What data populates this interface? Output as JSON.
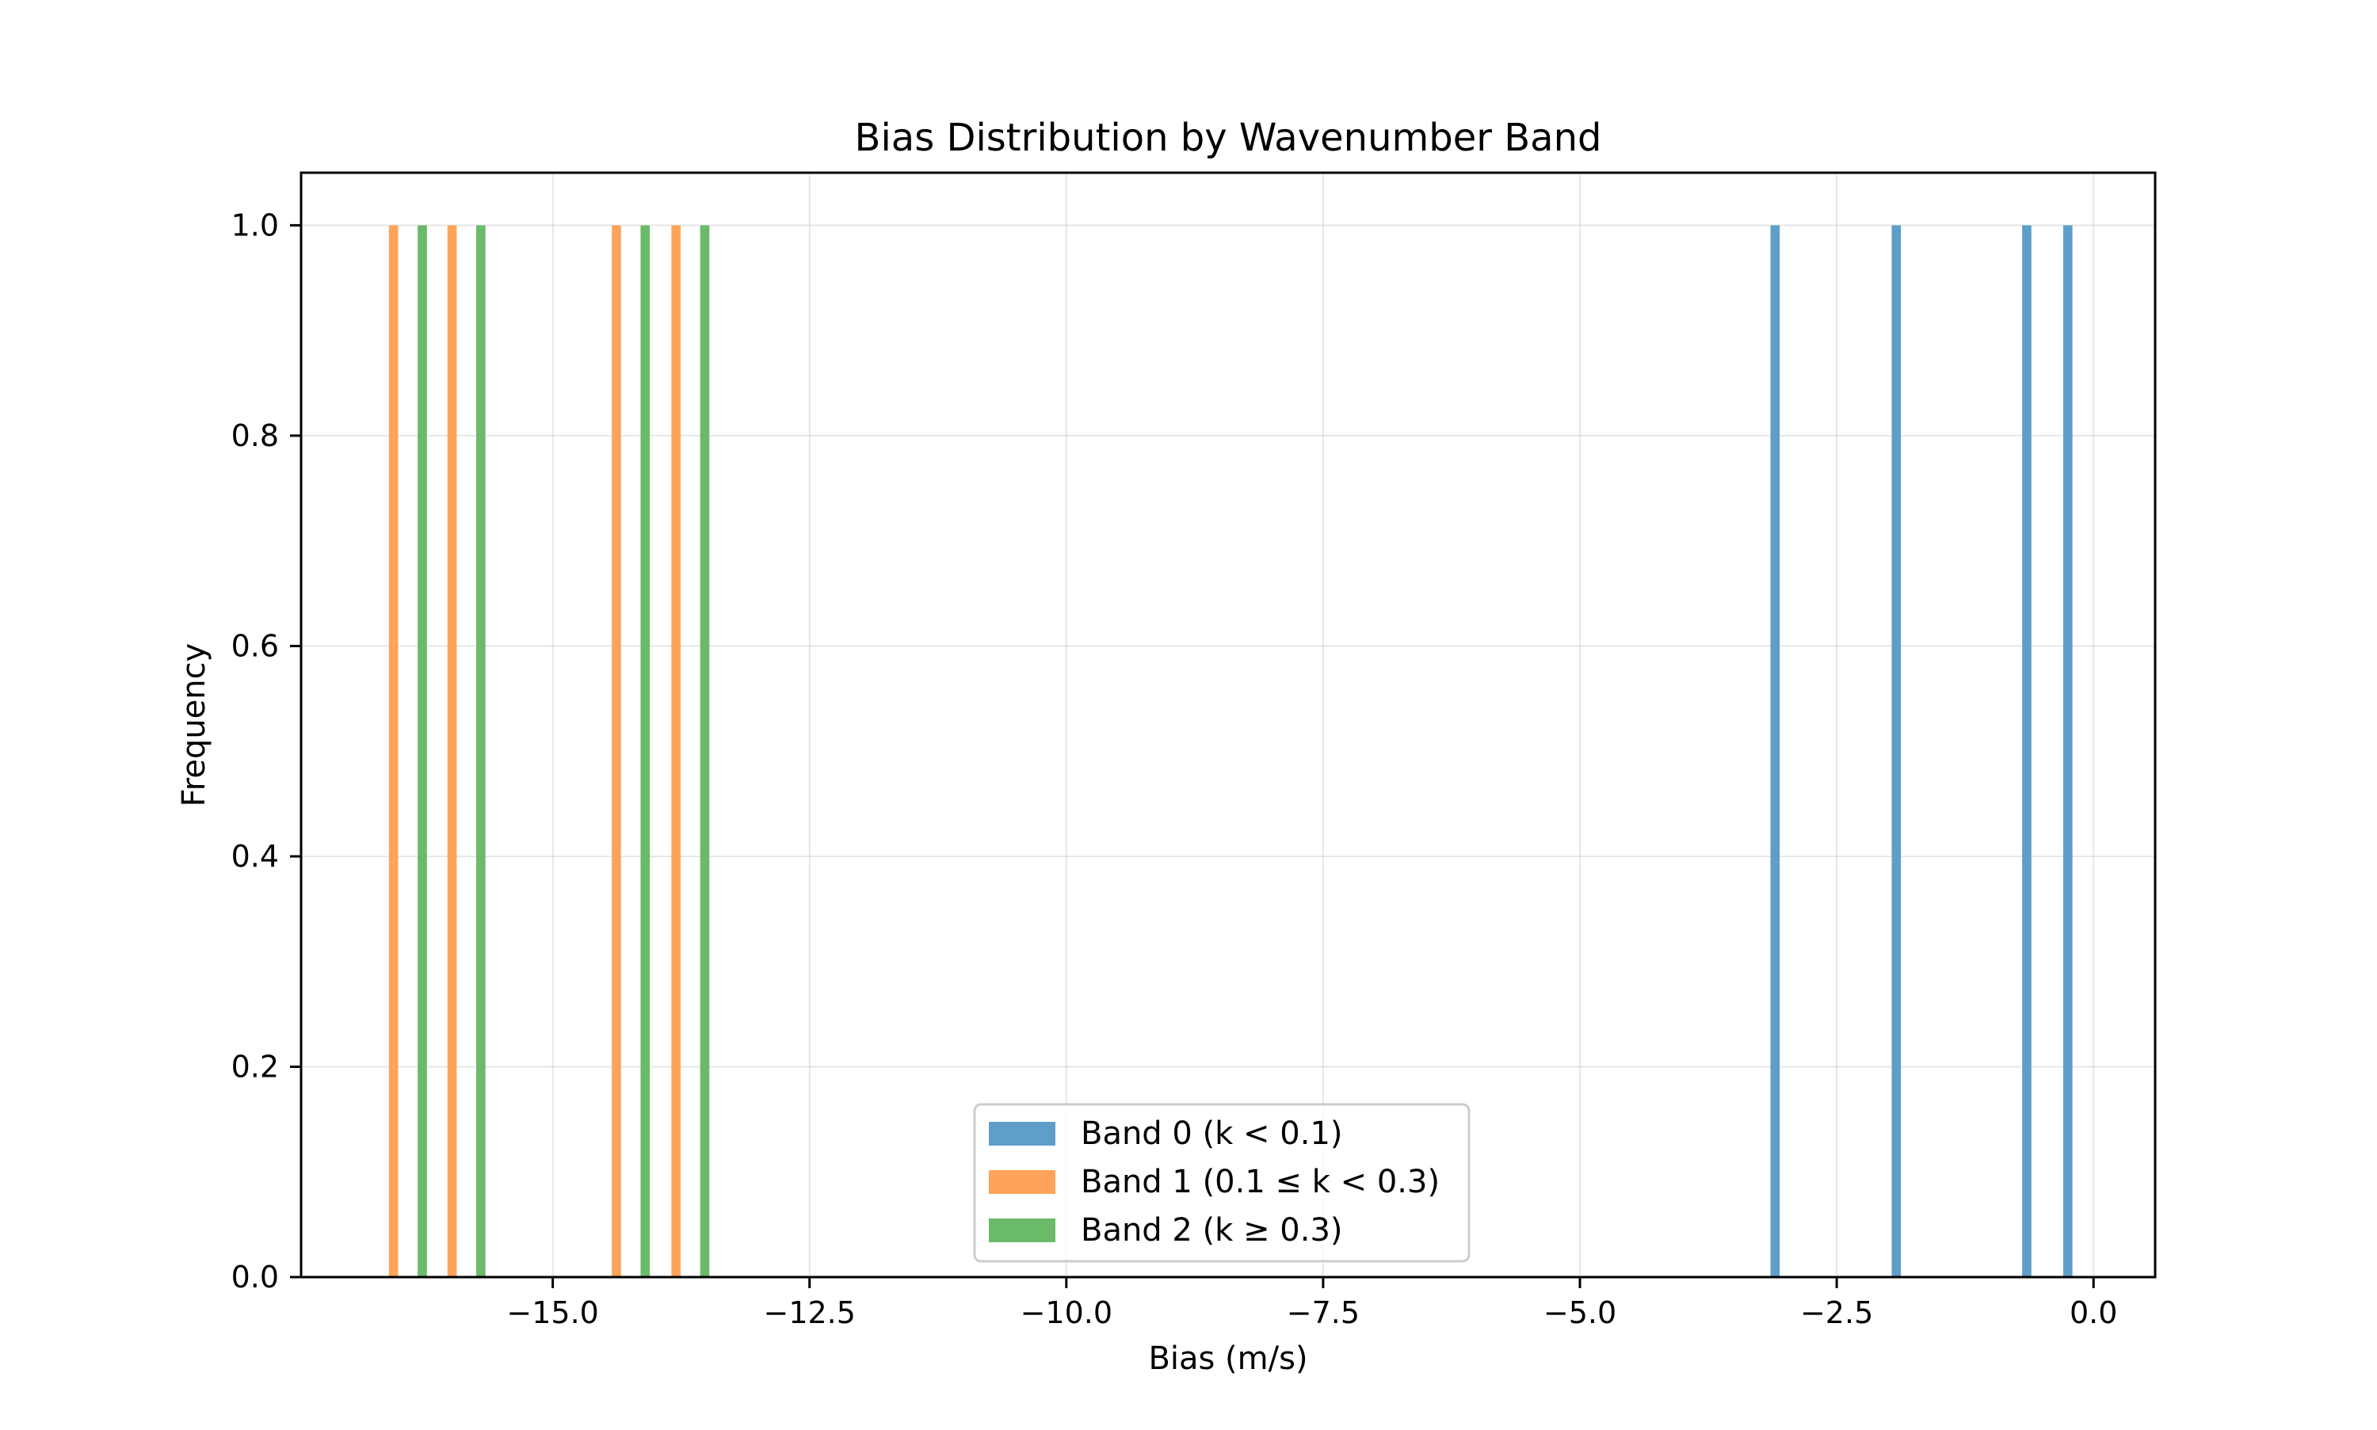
{
  "chart_data": {
    "type": "bar",
    "title": "Bias Distribution by Wavenumber Band",
    "xlabel": "Bias (m/s)",
    "ylabel": "Frequency",
    "xlim": [
      -17.45,
      0.6
    ],
    "ylim": [
      0,
      1.05
    ],
    "xticks": [
      -15.0,
      -12.5,
      -10.0,
      -7.5,
      -5.0,
      -2.5,
      0.0
    ],
    "xtick_labels": [
      "−15.0",
      "−12.5",
      "−10.0",
      "−7.5",
      "−5.0",
      "−2.5",
      "0.0"
    ],
    "yticks": [
      0.0,
      0.2,
      0.4,
      0.6,
      0.8,
      1.0
    ],
    "ytick_labels": [
      "0.0",
      "0.2",
      "0.4",
      "0.6",
      "0.8",
      "1.0"
    ],
    "bar_width": 0.09,
    "grid": true,
    "legend_position": "lower center",
    "series": [
      {
        "name": "Band 0 (k < 0.1)",
        "color": "#5f9ec9",
        "x": [
          -3.1,
          -1.92,
          -0.65,
          -0.25
        ],
        "values": [
          1,
          1,
          1,
          1
        ]
      },
      {
        "name": "Band 1 (0.1 ≤ k < 0.3)",
        "color": "#fda45a",
        "x": [
          -16.55,
          -15.98,
          -14.38,
          -13.8
        ],
        "values": [
          1,
          1,
          1,
          1
        ]
      },
      {
        "name": "Band 2 (k ≥ 0.3)",
        "color": "#6aba6a",
        "x": [
          -16.27,
          -15.7,
          -14.1,
          -13.52
        ],
        "values": [
          1,
          1,
          1,
          1
        ]
      }
    ]
  }
}
